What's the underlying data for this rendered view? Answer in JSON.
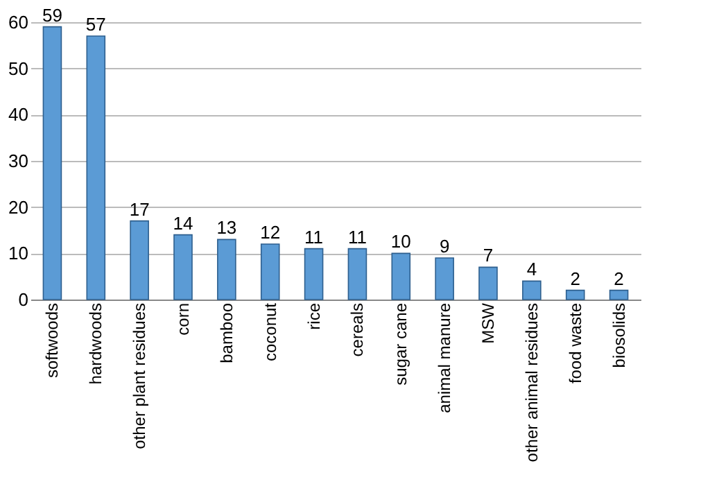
{
  "chart_data": {
    "type": "bar",
    "categories": [
      "softwoods",
      "hardwoods",
      "other plant residues",
      "corn",
      "bamboo",
      "coconut",
      "rice",
      "cereals",
      "sugar cane",
      "animal manure",
      "MSW",
      "other animal residues",
      "food waste",
      "biosolids"
    ],
    "values": [
      59,
      57,
      17,
      14,
      13,
      12,
      11,
      11,
      10,
      9,
      7,
      4,
      2,
      2
    ],
    "color": "#5b9bd5",
    "ylim": [
      0,
      60
    ],
    "yticks": [
      0,
      10,
      20,
      30,
      40,
      50,
      60
    ],
    "grid": "y",
    "data_labels": true
  }
}
